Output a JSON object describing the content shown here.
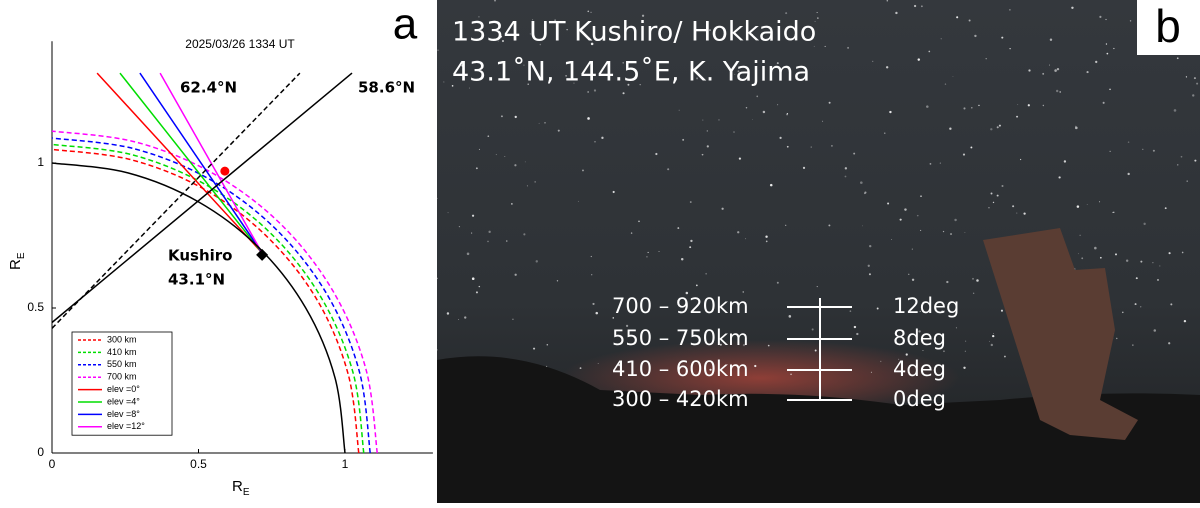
{
  "chart_data": {
    "type": "line",
    "title": "2025/03/26 1334 UT",
    "panel_label": "a",
    "xlabel": "R",
    "xlabel_sub": "E",
    "ylabel": "R",
    "ylabel_sub": "E",
    "xlim": [
      0,
      1.3
    ],
    "ylim": [
      0,
      1.42
    ],
    "xticks": [
      0,
      0.5,
      1
    ],
    "yticks": [
      0,
      0.5,
      1
    ],
    "annotations": [
      "62.4°N",
      "58.6°N",
      "Kushiro",
      "43.1°N"
    ],
    "series": [
      {
        "name": "300 km",
        "color": "#ff0000",
        "dashed": true,
        "x": [
          1.047,
          1.011,
          0.907,
          0.74,
          0.524,
          0.271,
          0
        ],
        "values": [
          0,
          0.271,
          0.524,
          0.74,
          0.907,
          1.011,
          1.047
        ]
      },
      {
        "name": "410 km",
        "color": "#00dd00",
        "dashed": true,
        "x": [
          1.064,
          1.028,
          0.921,
          0.752,
          0.532,
          0.275,
          0
        ],
        "values": [
          0,
          0.275,
          0.532,
          0.752,
          0.921,
          1.028,
          1.064
        ]
      },
      {
        "name": "550 km",
        "color": "#0000ff",
        "dashed": true,
        "x": [
          1.086,
          1.049,
          0.941,
          0.768,
          0.543,
          0.281,
          0
        ],
        "values": [
          0,
          0.281,
          0.543,
          0.768,
          0.941,
          1.049,
          1.086
        ]
      },
      {
        "name": "700 km",
        "color": "#ff00ff",
        "dashed": true,
        "x": [
          1.11,
          1.072,
          0.961,
          0.785,
          0.555,
          0.287,
          0
        ],
        "values": [
          0,
          0.287,
          0.555,
          0.785,
          0.961,
          1.072,
          1.11
        ]
      },
      {
        "name": "elev =0°",
        "color": "#ff0000",
        "dashed": false,
        "x": [
          0.717,
          0.154
        ],
        "values": [
          0.69,
          1.31
        ]
      },
      {
        "name": "elev =4°",
        "color": "#00dd00",
        "dashed": false,
        "x": [
          0.717,
          0.232
        ],
        "values": [
          0.69,
          1.31
        ]
      },
      {
        "name": "elev =8°",
        "color": "#0000ff",
        "dashed": false,
        "x": [
          0.717,
          0.3
        ],
        "values": [
          0.69,
          1.31
        ]
      },
      {
        "name": "elev =12°",
        "color": "#ff00ff",
        "dashed": false,
        "x": [
          0.717,
          0.369
        ],
        "values": [
          0.69,
          1.31
        ]
      },
      {
        "color": "#000000",
        "dashed": false,
        "x": [
          1,
          0.966,
          0.866,
          0.707,
          0.5,
          0.259,
          0
        ],
        "values": [
          0,
          0.259,
          0.5,
          0.707,
          0.866,
          0.966,
          1
        ]
      },
      {
        "color": "#000000",
        "dashed": false,
        "x": [
          0,
          1.024
        ],
        "values": [
          0.45,
          1.31
        ]
      },
      {
        "color": "#000000",
        "dashed": true,
        "x": [
          0,
          0.846
        ],
        "values": [
          0.43,
          1.31
        ]
      },
      {
        "color": "#ff0000",
        "marker": "circle",
        "x": [
          0.59
        ],
        "values": [
          0.972
        ]
      },
      {
        "color": "#000000",
        "marker": "diamond",
        "x": [
          0.717
        ],
        "values": [
          0.683
        ]
      }
    ]
  },
  "photo": {
    "title": "1334 UT Kushiro/ Hokkaido",
    "subtitle": "43.1˚N, 144.5˚E, K. Yajima",
    "panel_label": "b",
    "rows": [
      {
        "range": "700 – 920km",
        "elev": "12deg"
      },
      {
        "range": "550 – 750km",
        "elev": "8deg"
      },
      {
        "range": "410 – 600km",
        "elev": "4deg"
      },
      {
        "range": "300 – 420km",
        "elev": "0deg"
      }
    ]
  }
}
